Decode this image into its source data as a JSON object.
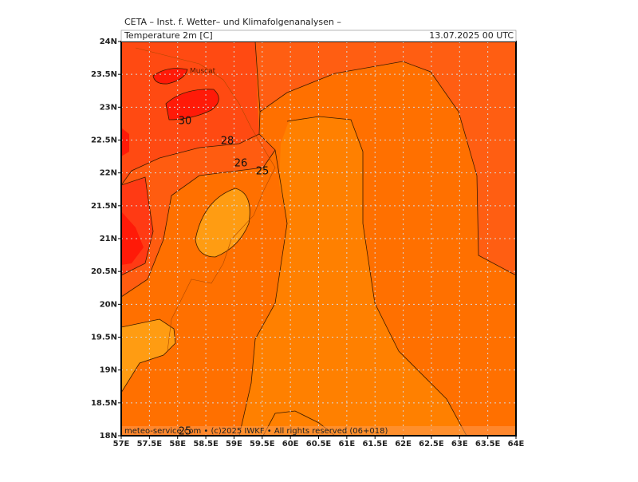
{
  "header": {
    "source": "CETA – Inst. f. Wetter– und Klimafolgenanalysen –",
    "variable": "Temperature 2m [C]",
    "valid_time": "13.07.2025 00 UTC"
  },
  "map": {
    "place_labels": [
      "Muscat"
    ],
    "contour_labels": [
      "30",
      "28",
      "26",
      "25",
      "25"
    ],
    "lat_labels": [
      "24N",
      "23.5N",
      "23N",
      "22.5N",
      "22N",
      "21.5N",
      "21N",
      "20.5N",
      "20N",
      "19.5N",
      "19N",
      "18.5N",
      "18N"
    ],
    "lon_labels": [
      "57E",
      "57.5E",
      "58E",
      "58.5E",
      "59E",
      "59.5E",
      "60E",
      "60.5E",
      "61E",
      "61.5E",
      "62E",
      "62.5E",
      "63E",
      "63.5E",
      "64E"
    ]
  },
  "footer": {
    "copyright": "meteo-service.com • (c)2025 IWKF • All rights reserved (06+018)"
  }
}
